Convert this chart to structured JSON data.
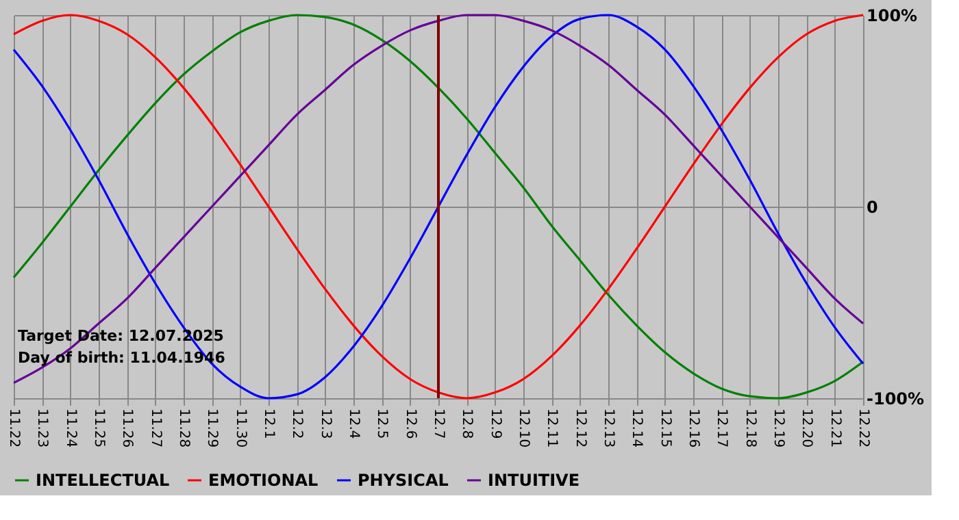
{
  "chart_data": {
    "type": "line",
    "categories": [
      "11.22",
      "11.23",
      "11.24",
      "11.25",
      "11.26",
      "11.27",
      "11.28",
      "11.29",
      "11.30",
      "12.1",
      "12.2",
      "12.3",
      "12.4",
      "12.5",
      "12.6",
      "12.7",
      "12.8",
      "12.9",
      "12.10",
      "12.11",
      "12.12",
      "12.13",
      "12.14",
      "12.15",
      "12.16",
      "12.17",
      "12.18",
      "12.19",
      "12.20",
      "12.21",
      "12.22"
    ],
    "series": [
      {
        "name": "INTELLECTUAL",
        "color": "#008000",
        "values": [
          -37,
          -19,
          0,
          19,
          37,
          54,
          69,
          81,
          91,
          97,
          100,
          99,
          95,
          87,
          76,
          62,
          46,
          28,
          10,
          -10,
          -28,
          -46,
          -62,
          -76,
          -87,
          -95,
          -99,
          -100,
          -97,
          -91,
          -81
        ]
      },
      {
        "name": "EMOTIONAL",
        "color": "#ff0000",
        "values": [
          90,
          97,
          100,
          97,
          90,
          78,
          62,
          43,
          22,
          0,
          -22,
          -43,
          -62,
          -78,
          -90,
          -97,
          -100,
          -97,
          -90,
          -78,
          -62,
          -43,
          -22,
          0,
          22,
          43,
          62,
          78,
          90,
          97,
          100
        ]
      },
      {
        "name": "PHYSICAL",
        "color": "#0000ff",
        "values": [
          82,
          63,
          40,
          14,
          -14,
          -40,
          -63,
          -82,
          -94,
          -100,
          -98,
          -89,
          -73,
          -52,
          -27,
          0,
          27,
          52,
          73,
          89,
          98,
          100,
          94,
          82,
          63,
          40,
          14,
          -14,
          -40,
          -63,
          -82
        ]
      },
      {
        "name": "INTUITIVE",
        "color": "#660099",
        "values": [
          -92,
          -84,
          -74,
          -61,
          -48,
          -32,
          -16,
          0,
          16,
          32,
          48,
          61,
          74,
          84,
          92,
          97,
          100,
          100,
          97,
          92,
          84,
          74,
          61,
          48,
          32,
          16,
          0,
          -16,
          -32,
          -48,
          -61
        ]
      }
    ],
    "ylim": [
      -100,
      100
    ],
    "yticks": [
      {
        "value": 100,
        "label": "100%"
      },
      0,
      {
        "value": -100,
        "label": "-100%"
      }
    ],
    "ref_lines": [
      {
        "axis": "x",
        "value": "12.7",
        "color": "#800000"
      }
    ],
    "annotations": [
      "Target Date: 12.07.2025",
      "Day of birth: 11.04.1946"
    ],
    "grid": true,
    "legend": "bottom",
    "marker": "none",
    "line_style": "solid"
  }
}
